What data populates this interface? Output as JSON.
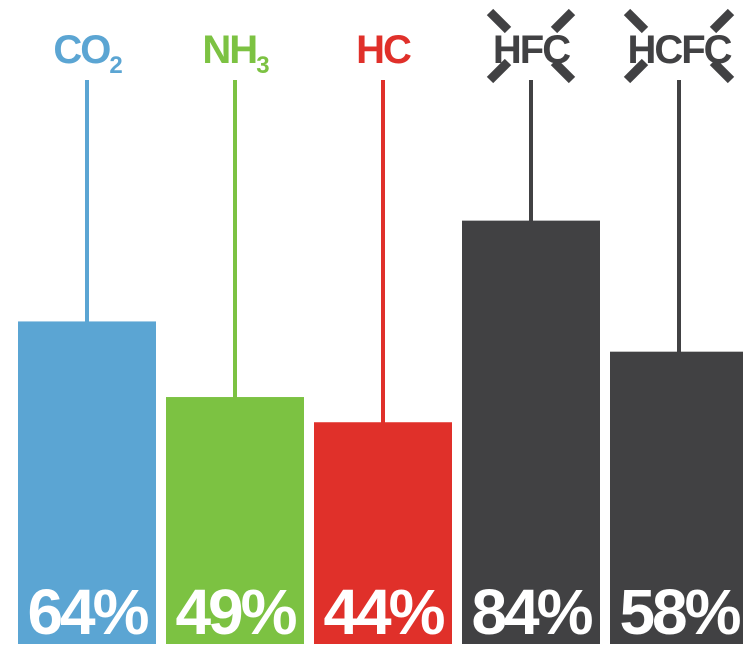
{
  "chart_data": {
    "type": "bar",
    "title": "",
    "xlabel": "",
    "ylabel": "",
    "ylim": [
      0,
      100
    ],
    "grid": false,
    "categories": [
      {
        "main": "CO",
        "sub": "2",
        "crossed_out": false
      },
      {
        "main": "NH",
        "sub": "3",
        "crossed_out": false
      },
      {
        "main": "HC",
        "sub": "",
        "crossed_out": false
      },
      {
        "main": "HFC",
        "sub": "",
        "crossed_out": true
      },
      {
        "main": "HCFC",
        "sub": "",
        "crossed_out": true
      }
    ],
    "values": [
      64,
      49,
      44,
      84,
      58
    ],
    "value_labels": [
      "64%",
      "49%",
      "44%",
      "84%",
      "58%"
    ],
    "colors": [
      "#5ba5d3",
      "#7cc242",
      "#e0302a",
      "#414143",
      "#414143"
    ]
  }
}
